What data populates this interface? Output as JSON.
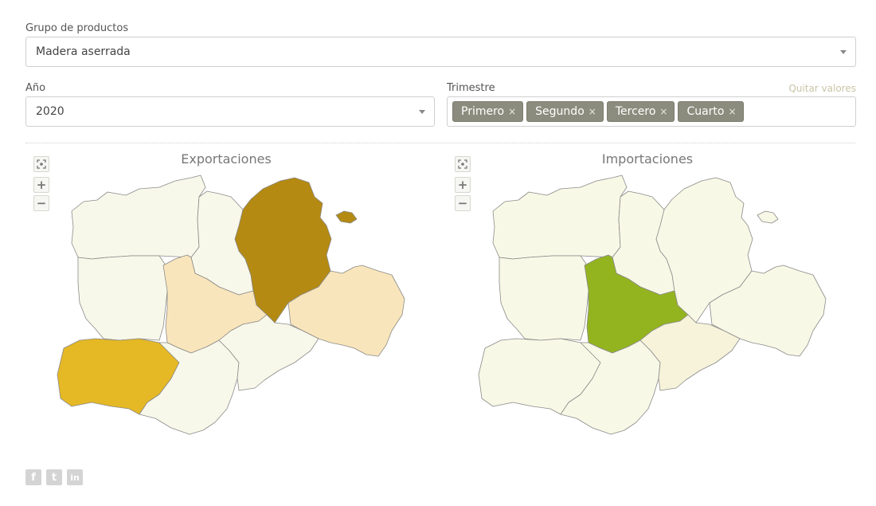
{
  "filters": {
    "product_group": {
      "label": "Grupo de productos",
      "value": "Madera aserrada"
    },
    "year": {
      "label": "Año",
      "value": "2020"
    },
    "quarter": {
      "label": "Trimestre",
      "clear_label": "Quitar valores",
      "tags": [
        "Primero",
        "Segundo",
        "Tercero",
        "Cuarto"
      ],
      "remove_glyph": "×"
    }
  },
  "maps": [
    {
      "title": "Exportaciones",
      "fills": {
        "leon": "#f8f8ea",
        "palencia": "#f8f8ea",
        "burgos": "#b48a12",
        "zamora": "#f8f8ea",
        "valladolid": "#f9e5bb",
        "soria": "#f9e5bb",
        "salamanca": "#e5b825",
        "avila": "#f8f8ea",
        "segovia": "#f8f8ea"
      }
    },
    {
      "title": "Importaciones",
      "fills": {
        "leon": "#f8f8e6",
        "palencia": "#f8f8e6",
        "burgos": "#f8f8e6",
        "zamora": "#f8f8e6",
        "valladolid": "#93b41f",
        "soria": "#f8f8e6",
        "salamanca": "#f8f8e6",
        "avila": "#f8f8e6",
        "segovia": "#f6f3da"
      }
    }
  ],
  "map_controls": {
    "zoom_in": "+",
    "zoom_out": "−"
  },
  "social": [
    {
      "icon": "facebook-icon",
      "glyph": "f"
    },
    {
      "icon": "twitter-icon",
      "glyph": "t"
    },
    {
      "icon": "linkedin-icon",
      "glyph": "in"
    }
  ]
}
